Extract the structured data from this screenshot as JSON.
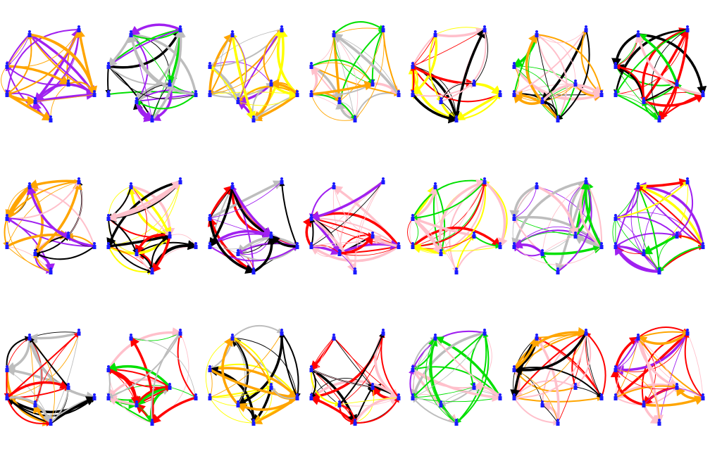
{
  "diagram": {
    "rows": 3,
    "columns": 7,
    "node_color": "#1a1aff",
    "panels": [
      {
        "colors": [
          "#a020f0",
          "#ffa500"
        ]
      },
      {
        "colors": [
          "#bdbdbd",
          "#00e000",
          "#a020f0",
          "#000000"
        ]
      },
      {
        "colors": [
          "#ffff00",
          "#ffa500",
          "#a020f0",
          "#bdbdbd"
        ]
      },
      {
        "colors": [
          "#ffc0cb",
          "#00e000",
          "#ffa500",
          "#bdbdbd"
        ]
      },
      {
        "colors": [
          "#ffff00",
          "#ff0000",
          "#000000",
          "#ffc0cb"
        ]
      },
      {
        "colors": [
          "#00e000",
          "#ffa500",
          "#ffc0cb",
          "#000000"
        ]
      },
      {
        "colors": [
          "#ff0000",
          "#00e000",
          "#ffc0cb",
          "#000000"
        ]
      },
      {
        "colors": [
          "#a020f0",
          "#ffa500",
          "#000000",
          "#ffc0cb"
        ]
      },
      {
        "colors": [
          "#ff0000",
          "#ffff00",
          "#ffc0cb",
          "#000000"
        ]
      },
      {
        "colors": [
          "#a020f0",
          "#ff0000",
          "#000000",
          "#bdbdbd"
        ]
      },
      {
        "colors": [
          "#ff0000",
          "#000000",
          "#ffc0cb",
          "#a020f0"
        ]
      },
      {
        "colors": [
          "#ffff00",
          "#ff0000",
          "#00e000",
          "#ffc0cb"
        ]
      },
      {
        "colors": [
          "#a020f0",
          "#00e000",
          "#ffc0cb",
          "#bdbdbd"
        ]
      },
      {
        "colors": [
          "#ff0000",
          "#00e000",
          "#ffff00",
          "#a020f0"
        ]
      },
      {
        "colors": [
          "#ffa500",
          "#ff0000",
          "#000000",
          "#bdbdbd"
        ]
      },
      {
        "colors": [
          "#ff0000",
          "#00e000",
          "#ffc0cb",
          "#bdbdbd"
        ]
      },
      {
        "colors": [
          "#ffff00",
          "#ffa500",
          "#000000",
          "#bdbdbd"
        ]
      },
      {
        "colors": [
          "#ff0000",
          "#ffff00",
          "#000000",
          "#ffc0cb"
        ]
      },
      {
        "colors": [
          "#00e000",
          "#a020f0",
          "#bdbdbd",
          "#ffc0cb"
        ]
      },
      {
        "colors": [
          "#ff0000",
          "#ffa500",
          "#000000",
          "#ffc0cb"
        ]
      },
      {
        "colors": [
          "#ffa500",
          "#ff0000",
          "#a020f0",
          "#ffc0cb"
        ]
      }
    ]
  }
}
